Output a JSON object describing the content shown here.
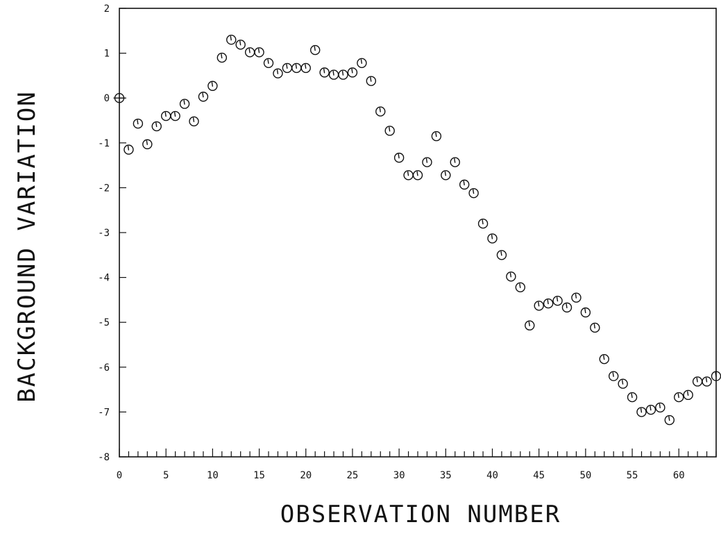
{
  "chart_data": {
    "type": "scatter",
    "title": "",
    "xlabel": "OBSERVATION NUMBER",
    "ylabel": "BACKGROUND VARIATION",
    "xlim": [
      0,
      64
    ],
    "ylim": [
      -8,
      2
    ],
    "x_ticks": [
      0,
      5,
      10,
      15,
      20,
      25,
      30,
      35,
      40,
      45,
      50,
      55,
      60
    ],
    "y_ticks": [
      -8,
      -7,
      -6,
      -5,
      -4,
      -3,
      -2,
      -1,
      0,
      1,
      2
    ],
    "grid": false,
    "legend": "none",
    "marker": "open-circle",
    "series": [
      {
        "x": [
          0,
          1,
          2,
          3,
          4,
          5,
          6,
          7,
          8,
          9,
          10,
          11,
          12,
          13,
          14,
          15,
          16,
          17,
          18,
          19,
          20,
          21,
          22,
          23,
          24,
          25,
          26,
          27,
          28,
          29,
          30,
          31,
          32,
          33,
          34,
          35,
          36,
          37,
          38,
          39,
          40,
          41,
          42,
          43,
          44,
          45,
          46,
          47,
          48,
          49,
          50,
          51,
          52,
          53,
          54,
          55,
          56,
          57,
          58,
          59,
          60,
          61,
          62,
          63,
          64
        ],
        "y": [
          0.0,
          -1.15,
          -0.57,
          -1.03,
          -0.63,
          -0.4,
          -0.4,
          -0.13,
          -0.52,
          0.03,
          0.27,
          0.9,
          1.3,
          1.19,
          1.02,
          1.02,
          0.78,
          0.55,
          0.67,
          0.67,
          0.67,
          1.07,
          0.57,
          0.52,
          0.52,
          0.57,
          0.78,
          0.38,
          -0.3,
          -0.73,
          -1.33,
          -1.72,
          -1.72,
          -1.43,
          -0.85,
          -1.72,
          -1.43,
          -1.93,
          -2.12,
          -2.8,
          -3.13,
          -3.5,
          -3.98,
          -4.22,
          -5.07,
          -4.63,
          -4.58,
          -4.52,
          -4.67,
          -4.45,
          -4.78,
          -5.12,
          -5.82,
          -6.2,
          -6.37,
          -6.67,
          -7.0,
          -6.95,
          -6.9,
          -7.18,
          -6.67,
          -6.62,
          -6.32,
          -6.32,
          -6.2
        ]
      }
    ]
  }
}
